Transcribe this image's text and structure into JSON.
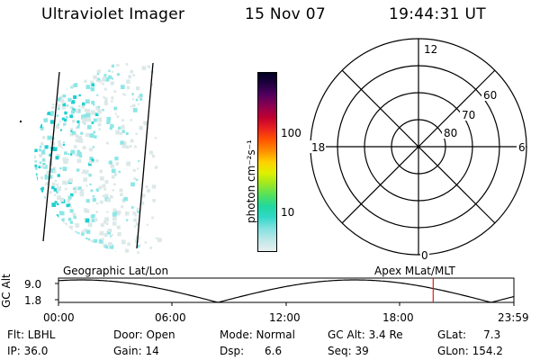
{
  "header": {
    "instrument": "Ultraviolet Imager",
    "date": "15 Nov 07",
    "time": "19:44:31 UT"
  },
  "colorbar": {
    "unit_label": "photon cm⁻²s⁻¹",
    "ticks": [
      "100",
      "10"
    ],
    "scale": "log",
    "colors": [
      "#e8eeee",
      "#c0e8e8",
      "#80e0e0",
      "#30d8c8",
      "#20d8a0",
      "#50e060",
      "#a0e820",
      "#e0f000",
      "#ffd000",
      "#ff9000",
      "#ff5000",
      "#e82020",
      "#c00030",
      "#900050",
      "#500060",
      "#200040",
      "#000020"
    ]
  },
  "polar_plot": {
    "hour_labels": {
      "top": "12",
      "left": "18",
      "right": "6",
      "bottom": "0"
    },
    "lat_labels": [
      "60",
      "70",
      "80"
    ]
  },
  "timeline": {
    "ylabel": "GC Alt",
    "y_ticks": [
      "9.0",
      "1.8"
    ],
    "left_title": "Geographic Lat/Lon",
    "right_title": "Apex  MLat/MLT",
    "x_ticks": [
      "00:00",
      "06:00",
      "12:00",
      "18:00",
      "23:59"
    ],
    "marker_time": "19:44",
    "marker_color": "#e02020"
  },
  "status": {
    "flt": "Flt: LBHL",
    "ip": "IP: 36.0",
    "door": "Door: Open",
    "gain": "Gain: 14",
    "mode": "Mode: Normal",
    "dsp": "Dsp:      6.6",
    "gc_alt": "GC Alt: 3.4 Re",
    "seq": "Seq: 39",
    "glat": "GLat:     7.3",
    "glon": "GLon: 154.2"
  }
}
